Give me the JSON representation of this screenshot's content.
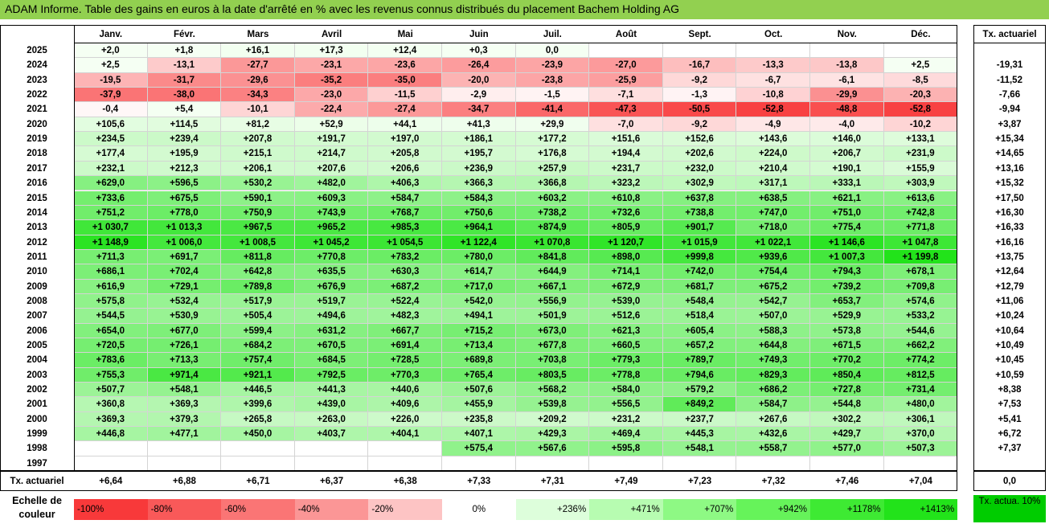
{
  "title": "ADAM Informe. Table des gains en euros à la date d'arrêté en % avec les revenus connus distribués du placement Bachem Holding AG",
  "colors": {
    "title_bg": "#92D050",
    "legend_tx_bg": "#00CC00"
  },
  "chart_data": {
    "type": "table",
    "months": [
      "Janv.",
      "Févr.",
      "Mars",
      "Avril",
      "Mai",
      "Juin",
      "Juil.",
      "Août",
      "Sept.",
      "Oct.",
      "Nov.",
      "Déc."
    ],
    "rate_header": "Tx. actuariel",
    "rows": [
      {
        "year": "2025",
        "values": [
          "+2,0",
          "+1,8",
          "+16,1",
          "+17,3",
          "+12,4",
          "+0,3",
          "0,0",
          "",
          "",
          "",
          "",
          ""
        ],
        "rate": ""
      },
      {
        "year": "2024",
        "values": [
          "+2,5",
          "-13,1",
          "-27,7",
          "-23,1",
          "-23,6",
          "-26,4",
          "-23,9",
          "-27,0",
          "-16,7",
          "-13,3",
          "-13,8",
          "+2,5"
        ],
        "rate": "-19,31"
      },
      {
        "year": "2023",
        "values": [
          "-19,5",
          "-31,7",
          "-29,6",
          "-35,2",
          "-35,0",
          "-20,0",
          "-23,8",
          "-25,9",
          "-9,2",
          "-6,7",
          "-6,1",
          "-8,5"
        ],
        "rate": "-11,52"
      },
      {
        "year": "2022",
        "values": [
          "-37,9",
          "-38,0",
          "-34,3",
          "-23,0",
          "-11,5",
          "-2,9",
          "-1,5",
          "-7,1",
          "-1,3",
          "-10,8",
          "-29,9",
          "-20,3"
        ],
        "rate": "-7,66"
      },
      {
        "year": "2021",
        "values": [
          "-0,4",
          "+5,4",
          "-10,1",
          "-22,4",
          "-27,4",
          "-34,7",
          "-41,4",
          "-47,3",
          "-50,5",
          "-52,8",
          "-48,8",
          "-52,8"
        ],
        "rate": "-9,94"
      },
      {
        "year": "2020",
        "values": [
          "+105,6",
          "+114,5",
          "+81,2",
          "+52,9",
          "+44,1",
          "+41,3",
          "+29,9",
          "-7,0",
          "-9,2",
          "-4,9",
          "-4,0",
          "-10,2"
        ],
        "rate": "+3,87"
      },
      {
        "year": "2019",
        "values": [
          "+234,5",
          "+239,4",
          "+207,8",
          "+191,7",
          "+197,0",
          "+186,1",
          "+177,2",
          "+151,6",
          "+152,6",
          "+143,6",
          "+146,0",
          "+133,1"
        ],
        "rate": "+15,34"
      },
      {
        "year": "2018",
        "values": [
          "+177,4",
          "+195,9",
          "+215,1",
          "+214,7",
          "+205,8",
          "+195,7",
          "+176,8",
          "+194,4",
          "+202,6",
          "+224,0",
          "+206,7",
          "+231,9"
        ],
        "rate": "+14,65"
      },
      {
        "year": "2017",
        "values": [
          "+232,1",
          "+212,3",
          "+206,1",
          "+207,6",
          "+206,6",
          "+236,9",
          "+257,9",
          "+231,7",
          "+232,0",
          "+210,4",
          "+190,1",
          "+155,9"
        ],
        "rate": "+13,16"
      },
      {
        "year": "2016",
        "values": [
          "+629,0",
          "+596,5",
          "+530,2",
          "+482,0",
          "+406,3",
          "+366,3",
          "+366,8",
          "+323,2",
          "+302,9",
          "+317,1",
          "+333,1",
          "+303,9"
        ],
        "rate": "+15,32"
      },
      {
        "year": "2015",
        "values": [
          "+733,6",
          "+675,5",
          "+590,1",
          "+609,3",
          "+584,7",
          "+584,3",
          "+603,2",
          "+610,8",
          "+637,8",
          "+638,5",
          "+621,1",
          "+613,6"
        ],
        "rate": "+17,50"
      },
      {
        "year": "2014",
        "values": [
          "+751,2",
          "+778,0",
          "+750,9",
          "+743,9",
          "+768,7",
          "+750,6",
          "+738,2",
          "+732,6",
          "+738,8",
          "+747,0",
          "+751,0",
          "+742,8"
        ],
        "rate": "+16,30"
      },
      {
        "year": "2013",
        "values": [
          "+1 030,7",
          "+1 013,3",
          "+967,5",
          "+965,2",
          "+985,3",
          "+964,1",
          "+874,9",
          "+805,9",
          "+901,7",
          "+718,0",
          "+775,4",
          "+771,8"
        ],
        "rate": "+16,33"
      },
      {
        "year": "2012",
        "values": [
          "+1 148,9",
          "+1 006,0",
          "+1 008,5",
          "+1 045,2",
          "+1 054,5",
          "+1 122,4",
          "+1 070,8",
          "+1 120,7",
          "+1 015,9",
          "+1 022,1",
          "+1 146,6",
          "+1 047,8"
        ],
        "rate": "+16,16"
      },
      {
        "year": "2011",
        "values": [
          "+711,3",
          "+691,7",
          "+811,8",
          "+770,8",
          "+783,2",
          "+780,0",
          "+841,8",
          "+898,0",
          "+999,8",
          "+939,6",
          "+1 007,3",
          "+1 199,8"
        ],
        "rate": "+13,75"
      },
      {
        "year": "2010",
        "values": [
          "+686,1",
          "+702,4",
          "+642,8",
          "+635,5",
          "+630,3",
          "+614,7",
          "+644,9",
          "+714,1",
          "+742,0",
          "+754,4",
          "+794,3",
          "+678,1"
        ],
        "rate": "+12,64"
      },
      {
        "year": "2009",
        "values": [
          "+616,9",
          "+729,1",
          "+789,8",
          "+676,9",
          "+687,2",
          "+717,0",
          "+667,1",
          "+672,9",
          "+681,7",
          "+675,2",
          "+739,2",
          "+709,8"
        ],
        "rate": "+12,79"
      },
      {
        "year": "2008",
        "values": [
          "+575,8",
          "+532,4",
          "+517,9",
          "+519,7",
          "+522,4",
          "+542,0",
          "+556,9",
          "+539,0",
          "+548,4",
          "+542,7",
          "+653,7",
          "+574,6"
        ],
        "rate": "+11,06"
      },
      {
        "year": "2007",
        "values": [
          "+544,5",
          "+530,9",
          "+505,4",
          "+494,6",
          "+482,3",
          "+494,1",
          "+501,9",
          "+512,6",
          "+518,4",
          "+507,0",
          "+529,9",
          "+533,2"
        ],
        "rate": "+10,24"
      },
      {
        "year": "2006",
        "values": [
          "+654,0",
          "+677,0",
          "+599,4",
          "+631,2",
          "+667,7",
          "+715,2",
          "+673,0",
          "+621,3",
          "+605,4",
          "+588,3",
          "+573,8",
          "+544,6"
        ],
        "rate": "+10,64"
      },
      {
        "year": "2005",
        "values": [
          "+720,5",
          "+726,1",
          "+684,2",
          "+670,5",
          "+691,4",
          "+713,4",
          "+677,8",
          "+660,5",
          "+657,2",
          "+644,8",
          "+671,5",
          "+662,2"
        ],
        "rate": "+10,49"
      },
      {
        "year": "2004",
        "values": [
          "+783,6",
          "+713,3",
          "+757,4",
          "+684,5",
          "+728,5",
          "+689,8",
          "+703,8",
          "+779,3",
          "+789,7",
          "+749,3",
          "+770,2",
          "+774,2"
        ],
        "rate": "+10,45"
      },
      {
        "year": "2003",
        "values": [
          "+755,3",
          "+971,4",
          "+921,1",
          "+792,5",
          "+770,3",
          "+765,4",
          "+803,5",
          "+778,8",
          "+794,6",
          "+829,3",
          "+850,4",
          "+812,5"
        ],
        "rate": "+10,59"
      },
      {
        "year": "2002",
        "values": [
          "+507,7",
          "+548,1",
          "+446,5",
          "+441,3",
          "+440,6",
          "+507,6",
          "+568,2",
          "+584,0",
          "+579,2",
          "+686,2",
          "+727,8",
          "+731,4"
        ],
        "rate": "+8,38"
      },
      {
        "year": "2001",
        "values": [
          "+360,8",
          "+369,3",
          "+399,6",
          "+439,0",
          "+409,6",
          "+455,9",
          "+539,8",
          "+556,5",
          "+849,2",
          "+584,7",
          "+544,8",
          "+480,0"
        ],
        "rate": "+7,53"
      },
      {
        "year": "2000",
        "values": [
          "+369,3",
          "+379,3",
          "+265,8",
          "+263,0",
          "+226,0",
          "+235,8",
          "+209,2",
          "+231,2",
          "+237,7",
          "+267,6",
          "+302,2",
          "+306,1"
        ],
        "rate": "+5,41"
      },
      {
        "year": "1999",
        "values": [
          "+446,8",
          "+477,1",
          "+450,0",
          "+403,7",
          "+404,1",
          "+407,1",
          "+429,3",
          "+469,4",
          "+445,3",
          "+432,6",
          "+429,7",
          "+370,0"
        ],
        "rate": "+6,72"
      },
      {
        "year": "1998",
        "values": [
          "",
          "",
          "",
          "",
          "",
          "+575,4",
          "+567,6",
          "+595,8",
          "+548,1",
          "+558,7",
          "+577,0",
          "+507,3"
        ],
        "rate": "+7,37"
      },
      {
        "year": "1997",
        "values": [
          "",
          "",
          "",
          "",
          "",
          "",
          "",
          "",
          "",
          "",
          "",
          ""
        ],
        "rate": ""
      }
    ],
    "footer": {
      "label": "Tx. actuariel",
      "values": [
        "+6,64",
        "+6,88",
        "+6,71",
        "+6,37",
        "+6,38",
        "+7,33",
        "+7,31",
        "+7,49",
        "+7,23",
        "+7,32",
        "+7,46",
        "+7,04"
      ],
      "rate": "0,0"
    },
    "legend": {
      "label": "Echelle de couleur",
      "items": [
        {
          "text": "-100%",
          "color": "#F8393A"
        },
        {
          "text": "-80%",
          "color": "#F95959"
        },
        {
          "text": "-60%",
          "color": "#FA7575"
        },
        {
          "text": "-40%",
          "color": "#FB9696"
        },
        {
          "text": "-20%",
          "color": "#FDC4C4"
        },
        {
          "text": "0%",
          "color": "#FFFFFF"
        },
        {
          "text": "+236%",
          "color": "#DDFEDB"
        },
        {
          "text": "+471%",
          "color": "#B7FCB1"
        },
        {
          "text": "+707%",
          "color": "#8EF984"
        },
        {
          "text": "+942%",
          "color": "#66F35A"
        },
        {
          "text": "+1178%",
          "color": "#3EEA33"
        },
        {
          "text": "+1413%",
          "color": "#22E31A"
        }
      ],
      "tx_label": "Tx. actua. 10%"
    }
  }
}
